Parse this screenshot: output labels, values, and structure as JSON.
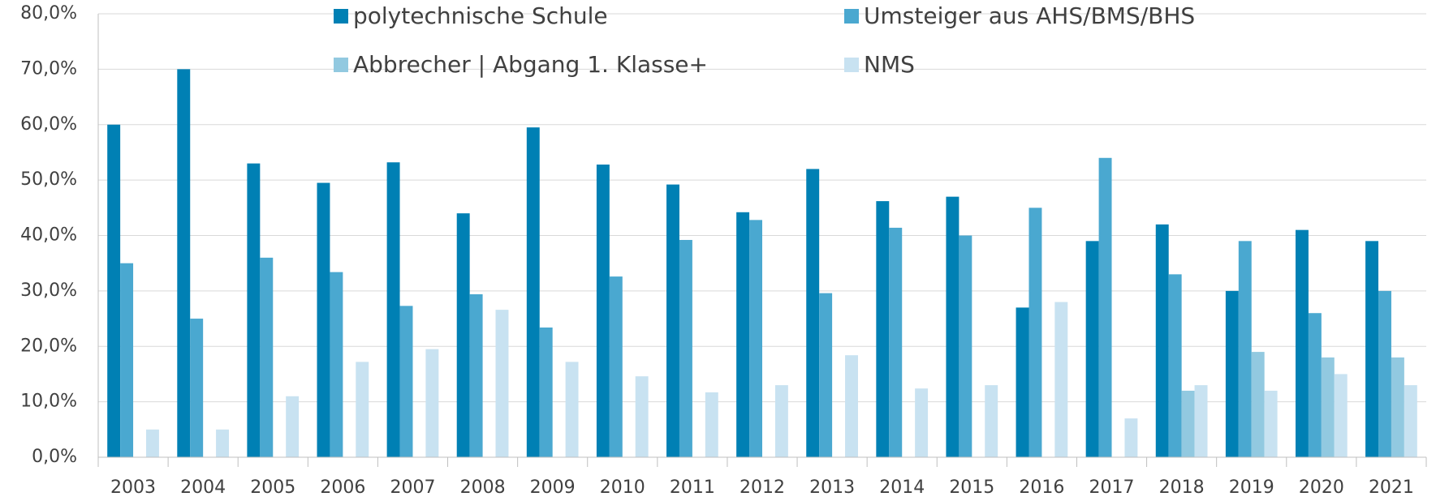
{
  "chart_data": {
    "type": "bar",
    "categories": [
      "2003",
      "2004",
      "2005",
      "2006",
      "2007",
      "2008",
      "2009",
      "2010",
      "2011",
      "2012",
      "2013",
      "2014",
      "2015",
      "2016",
      "2017",
      "2018",
      "2019",
      "2020",
      "2021"
    ],
    "series": [
      {
        "name": "polytechnische Schule",
        "color": "#0080b4",
        "values": [
          60,
          70,
          53,
          49.5,
          53.2,
          44,
          59.5,
          52.8,
          49.2,
          44.2,
          52,
          46.2,
          47,
          27,
          39,
          42,
          30,
          41,
          39
        ]
      },
      {
        "name": "Umsteiger aus AHS/BMS/BHS",
        "color": "#4aa8d0",
        "values": [
          35,
          25,
          36,
          33.4,
          27.3,
          29.4,
          23.4,
          32.6,
          39.2,
          42.8,
          29.6,
          41.4,
          40,
          45,
          54,
          33,
          39,
          26,
          30
        ]
      },
      {
        "name": "Abbrecher | Abgang 1. Klasse+",
        "color": "#92c9e0",
        "values": [
          null,
          null,
          null,
          null,
          null,
          null,
          null,
          null,
          null,
          null,
          null,
          null,
          null,
          null,
          null,
          12,
          19,
          18,
          18
        ]
      },
      {
        "name": "NMS",
        "color": "#c8e2f1",
        "values": [
          5,
          5,
          11,
          17.2,
          19.5,
          26.6,
          17.2,
          14.6,
          11.7,
          13,
          18.4,
          12.4,
          13,
          28,
          7,
          13,
          12,
          15,
          13
        ]
      }
    ],
    "ylim": [
      0,
      80
    ],
    "yticks": [
      {
        "value": 0,
        "label": "0,0%"
      },
      {
        "value": 10,
        "label": "10,0%"
      },
      {
        "value": 20,
        "label": "20,0%"
      },
      {
        "value": 30,
        "label": "30,0%"
      },
      {
        "value": 40,
        "label": "40,0%"
      },
      {
        "value": 50,
        "label": "50,0%"
      },
      {
        "value": 60,
        "label": "60,0%"
      },
      {
        "value": 70,
        "label": "70,0%"
      },
      {
        "value": 80,
        "label": "80,0%"
      }
    ],
    "grid": true
  }
}
